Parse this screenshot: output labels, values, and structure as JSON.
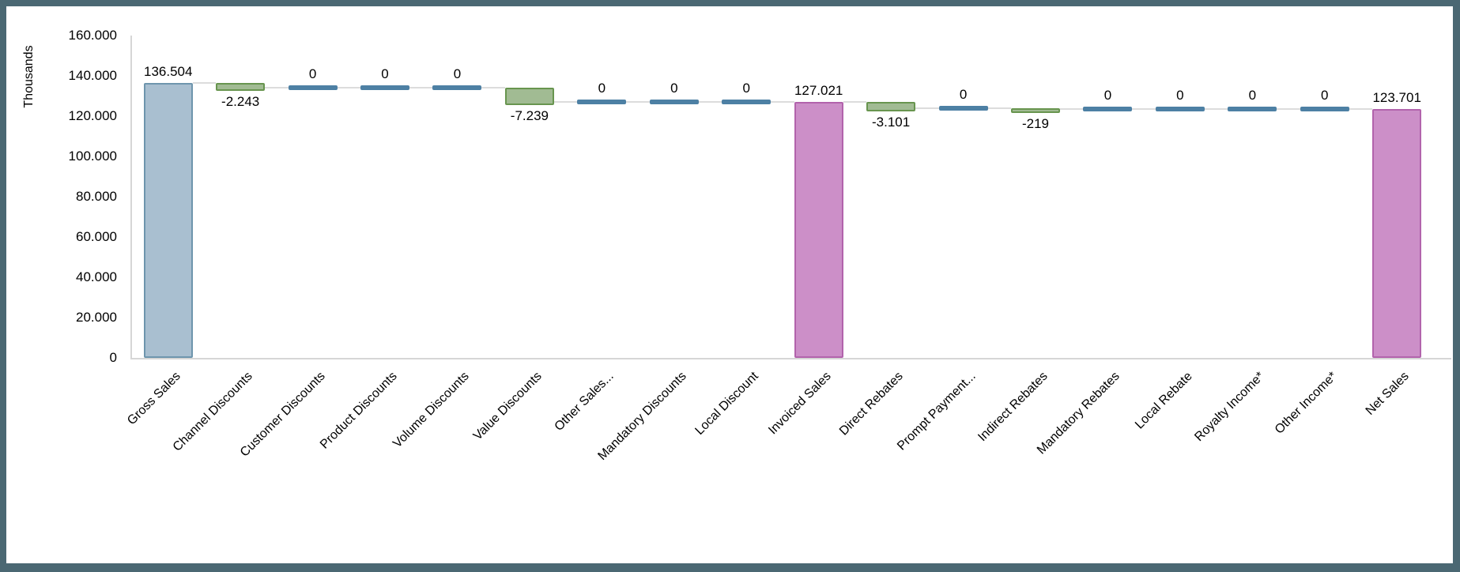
{
  "frame": {
    "border_color": "#4b6873",
    "canvas_background": "#ffffff"
  },
  "chart_data": {
    "type": "waterfall",
    "title": "",
    "xlabel": "",
    "ylabel": "Thousands",
    "ylim": [
      0,
      160000
    ],
    "grid": false,
    "legend": false,
    "y_ticks": [
      {
        "label": "0",
        "value": 0
      },
      {
        "label": "20.000",
        "value": 20000
      },
      {
        "label": "40.000",
        "value": 40000
      },
      {
        "label": "60.000",
        "value": 60000
      },
      {
        "label": "80.000",
        "value": 80000
      },
      {
        "label": "100.000",
        "value": 100000
      },
      {
        "label": "120.000",
        "value": 120000
      },
      {
        "label": "140.000",
        "value": 140000
      },
      {
        "label": "160.000",
        "value": 160000
      }
    ],
    "categories": [
      "Gross Sales",
      "Channel Discounts",
      "Customer Discounts",
      "Product Discounts",
      "Volume Discounts",
      "Value Discounts",
      "Other Sales...",
      "Mandatory Discounts",
      "Local Discount",
      "Invoiced Sales",
      "Direct Rebates",
      "Prompt Payment...",
      "Indirect Rebates",
      "Mandatory Rebates",
      "Local Rebate",
      "Royalty Income*",
      "Other Income*",
      "Net Sales"
    ],
    "steps": [
      {
        "category": "Gross Sales",
        "kind": "start",
        "value": 136504,
        "label": "136.504"
      },
      {
        "category": "Channel Discounts",
        "kind": "decrease",
        "value": -2243,
        "label": "-2.243"
      },
      {
        "category": "Customer Discounts",
        "kind": "zero",
        "value": 0,
        "label": "0"
      },
      {
        "category": "Product Discounts",
        "kind": "zero",
        "value": 0,
        "label": "0"
      },
      {
        "category": "Volume Discounts",
        "kind": "zero",
        "value": 0,
        "label": "0"
      },
      {
        "category": "Value Discounts",
        "kind": "decrease",
        "value": -7239,
        "label": "-7.239"
      },
      {
        "category": "Other Sales...",
        "kind": "zero",
        "value": 0,
        "label": "0"
      },
      {
        "category": "Mandatory Discounts",
        "kind": "zero",
        "value": 0,
        "label": "0"
      },
      {
        "category": "Local Discount",
        "kind": "zero",
        "value": 0,
        "label": "0"
      },
      {
        "category": "Invoiced Sales",
        "kind": "subtotal",
        "value": 127021,
        "label": "127.021"
      },
      {
        "category": "Direct Rebates",
        "kind": "decrease",
        "value": -3101,
        "label": "-3.101"
      },
      {
        "category": "Prompt Payment...",
        "kind": "zero",
        "value": 0,
        "label": "0"
      },
      {
        "category": "Indirect Rebates",
        "kind": "decrease",
        "value": -219,
        "label": "-219"
      },
      {
        "category": "Mandatory Rebates",
        "kind": "zero",
        "value": 0,
        "label": "0"
      },
      {
        "category": "Local Rebate",
        "kind": "zero",
        "value": 0,
        "label": "0"
      },
      {
        "category": "Royalty Income*",
        "kind": "zero",
        "value": 0,
        "label": "0"
      },
      {
        "category": "Other Income*",
        "kind": "zero",
        "value": 0,
        "label": "0"
      },
      {
        "category": "Net Sales",
        "kind": "subtotal",
        "value": 123701,
        "label": "123.701"
      }
    ],
    "colors": {
      "start_fill": "#a9bfd0",
      "start_border": "#6e95ad",
      "subtotal_fill": "#cc8fc8",
      "subtotal_border": "#b263ac",
      "decrease_fill": "#a1bb93",
      "decrease_border": "#68954f",
      "zero_fill": "#4d80a4",
      "connector": "#dcdcdc",
      "axis": "#d6d6d6",
      "text": "#000000"
    }
  }
}
